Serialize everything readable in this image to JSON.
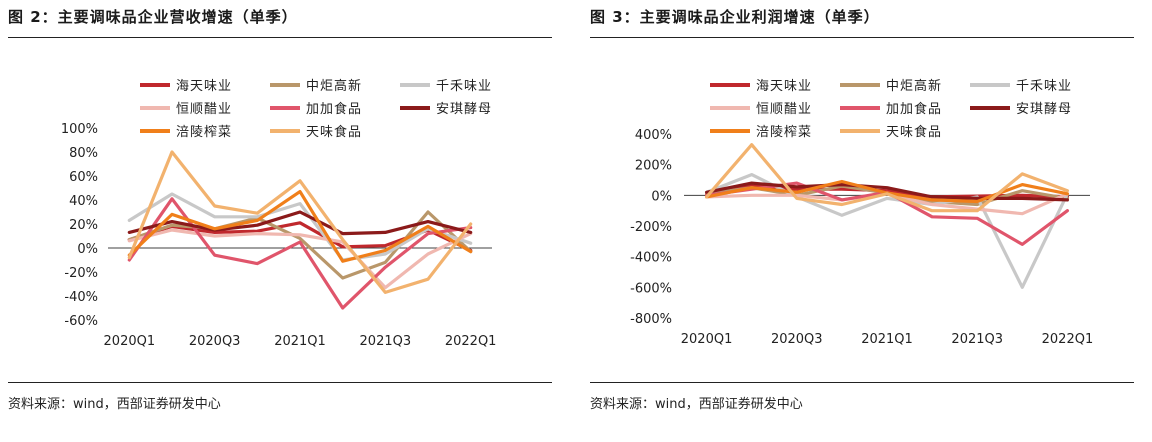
{
  "figures": [
    {
      "title": "图 2：主要调味品企业营收增速（单季）",
      "source": "资料来源：wind，西部证券研发中心"
    },
    {
      "title": "图 3：主要调味品企业利润增速（单季）",
      "source": "资料来源：wind，西部证券研发中心"
    }
  ],
  "chart_data": [
    {
      "type": "line",
      "title": "图 2：主要调味品企业营收增速（单季）",
      "xlabel": "",
      "ylabel": "",
      "ylim": [
        -60,
        100
      ],
      "yticks": [
        -60,
        -40,
        -20,
        0,
        20,
        40,
        60,
        80,
        100
      ],
      "y_tick_labels": [
        "-60%",
        "-40%",
        "-20%",
        "0%",
        "20%",
        "40%",
        "60%",
        "80%",
        "100%"
      ],
      "x_tick_labels": [
        "2020Q1",
        "2020Q3",
        "2021Q1",
        "2021Q3",
        "2022Q1"
      ],
      "categories": [
        "2020Q1",
        "2020Q2",
        "2020Q3",
        "2020Q4",
        "2021Q1",
        "2021Q2",
        "2021Q3",
        "2021Q4",
        "2022Q1"
      ],
      "grid": false,
      "legend_position": "top",
      "series": [
        {
          "name": "海天味业",
          "color": "#c0282d",
          "values": [
            7,
            18,
            13,
            14,
            21,
            1,
            2,
            15,
            -2
          ]
        },
        {
          "name": "中炬高新",
          "color": "#b9976a",
          "values": [
            7,
            19,
            16,
            25,
            8,
            -25,
            -12,
            30,
            -3
          ]
        },
        {
          "name": "千禾味业",
          "color": "#c8c8c8",
          "values": [
            23,
            45,
            26,
            26,
            37,
            -10,
            -5,
            16,
            4
          ]
        },
        {
          "name": "恒顺醋业",
          "color": "#f0b8b0",
          "values": [
            6,
            15,
            10,
            12,
            11,
            5,
            -33,
            -5,
            12
          ]
        },
        {
          "name": "加加食品",
          "color": "#e0556b",
          "values": [
            -10,
            41,
            -6,
            -13,
            5,
            -50,
            -16,
            12,
            17
          ]
        },
        {
          "name": "安琪酵母",
          "color": "#8b1a1a",
          "values": [
            13,
            22,
            15,
            19,
            30,
            12,
            13,
            22,
            13
          ]
        },
        {
          "name": "涪陵榨菜",
          "color": "#f07f1a",
          "values": [
            -6,
            28,
            16,
            23,
            47,
            -11,
            -2,
            18,
            -3
          ]
        },
        {
          "name": "天味食品",
          "color": "#f2b26e",
          "values": [
            -8,
            80,
            35,
            29,
            56,
            7,
            -37,
            -26,
            20
          ]
        }
      ]
    },
    {
      "type": "line",
      "title": "图 3：主要调味品企业利润增速（单季）",
      "xlabel": "",
      "ylabel": "",
      "ylim": [
        -800,
        400
      ],
      "yticks": [
        -800,
        -600,
        -400,
        -200,
        0,
        200,
        400
      ],
      "y_tick_labels": [
        "-800%",
        "-600%",
        "-400%",
        "-200%",
        "0%",
        "200%",
        "400%"
      ],
      "x_tick_labels": [
        "2020Q1",
        "2020Q3",
        "2021Q1",
        "2021Q3",
        "2022Q1"
      ],
      "categories": [
        "2020Q1",
        "2020Q2",
        "2020Q3",
        "2020Q4",
        "2021Q1",
        "2021Q2",
        "2021Q3",
        "2021Q4",
        "2022Q1"
      ],
      "grid": false,
      "legend_position": "top",
      "series": [
        {
          "name": "海天味业",
          "color": "#c0282d",
          "values": [
            10,
            60,
            40,
            40,
            30,
            -10,
            -5,
            0,
            -10
          ]
        },
        {
          "name": "中炬高新",
          "color": "#b9976a",
          "values": [
            10,
            50,
            0,
            60,
            15,
            -40,
            -60,
            30,
            -20
          ]
        },
        {
          "name": "千禾味业",
          "color": "#c8c8c8",
          "values": [
            20,
            135,
            -10,
            -130,
            -20,
            -60,
            -10,
            -600,
            10
          ]
        },
        {
          "name": "恒顺醋业",
          "color": "#f0b8b0",
          "values": [
            -10,
            0,
            0,
            -30,
            10,
            -60,
            -90,
            -120,
            10
          ]
        },
        {
          "name": "加加食品",
          "color": "#e0556b",
          "values": [
            0,
            40,
            80,
            -30,
            20,
            -140,
            -150,
            -320,
            -100
          ]
        },
        {
          "name": "安琪酵母",
          "color": "#8b1a1a",
          "values": [
            20,
            80,
            55,
            70,
            50,
            -10,
            -20,
            -20,
            -30
          ]
        },
        {
          "name": "涪陵榨菜",
          "color": "#f07f1a",
          "values": [
            -10,
            50,
            20,
            90,
            15,
            -30,
            -40,
            70,
            10
          ]
        },
        {
          "name": "天味食品",
          "color": "#f2b26e",
          "values": [
            -10,
            330,
            -20,
            -60,
            10,
            -100,
            -100,
            140,
            30
          ]
        }
      ]
    }
  ]
}
